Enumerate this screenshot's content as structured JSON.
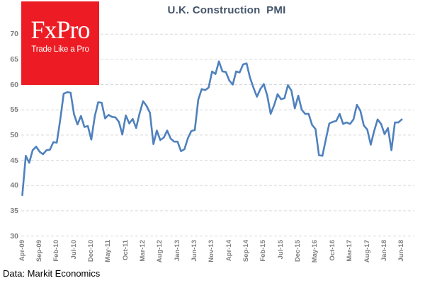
{
  "logo": {
    "brand": "FxPro",
    "tagline": "Trade Like a Pro",
    "bg_color": "#ED1C24",
    "text_color": "#FFFFFF"
  },
  "footer": {
    "source": "Data: Markit Economics"
  },
  "colors": {
    "line": "#4F81BD",
    "title": "#44546A",
    "axis_labels": "#7F7F7F",
    "gridline": "#D9D9D9"
  },
  "chart_data": {
    "type": "line",
    "title": "U.K. Construction  PMI",
    "xlabel": "",
    "ylabel": "",
    "ylim": [
      30,
      70
    ],
    "ytick_step": 5,
    "grid": "dashed-horizontal",
    "legend": "none",
    "x_tick_interval": 5,
    "x_tick_labels": [
      "Apr-09",
      "Sep-09",
      "Feb-10",
      "Jul-10",
      "Dec-10",
      "May-11",
      "Oct-11",
      "Mar-12",
      "Aug-12",
      "Jan-13",
      "Jun-13",
      "Nov-13",
      "Apr-14",
      "Sep-14",
      "Feb-15",
      "Jul-15",
      "Dec-15",
      "May-16",
      "Oct-16",
      "Mar-17",
      "Aug-17",
      "Jan-18",
      "Jun-18"
    ],
    "series": [
      {
        "name": "U.K. Construction PMI (monthly, Apr-09 to Jun-18)",
        "values": [
          38.1,
          45.9,
          44.5,
          47.0,
          47.7,
          46.7,
          46.2,
          47.0,
          47.1,
          48.6,
          48.5,
          53.1,
          58.2,
          58.5,
          58.4,
          54.1,
          52.1,
          53.8,
          51.6,
          51.8,
          49.1,
          53.7,
          56.5,
          56.4,
          53.3,
          54.0,
          53.6,
          53.5,
          52.6,
          50.1,
          53.9,
          52.3,
          53.2,
          51.4,
          54.3,
          56.7,
          55.8,
          54.4,
          48.2,
          50.9,
          49.0,
          49.5,
          50.9,
          49.3,
          48.7,
          48.7,
          46.8,
          47.2,
          49.4,
          50.8,
          51.0,
          57.0,
          59.1,
          58.9,
          59.4,
          62.6,
          62.1,
          64.6,
          62.6,
          62.5,
          60.8,
          60.0,
          62.6,
          62.4,
          64.0,
          64.2,
          61.4,
          59.4,
          57.6,
          59.1,
          60.1,
          57.8,
          54.2,
          55.9,
          58.1,
          57.1,
          57.3,
          59.9,
          58.8,
          55.3,
          57.8,
          55.0,
          54.2,
          54.2,
          52.0,
          51.2,
          46.0,
          45.9,
          49.2,
          52.3,
          52.6,
          52.8,
          54.2,
          52.2,
          52.5,
          52.2,
          53.1,
          56.0,
          54.8,
          51.9,
          51.1,
          48.1,
          50.8,
          53.1,
          52.2,
          50.2,
          51.4,
          47.0,
          52.5,
          52.5,
          53.1
        ]
      }
    ]
  }
}
